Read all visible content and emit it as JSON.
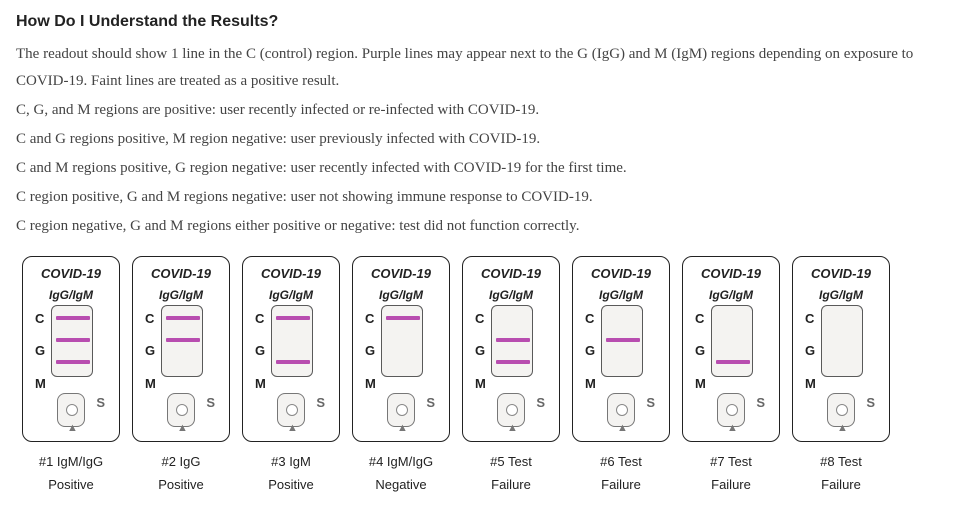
{
  "heading": "How Do I Understand the Results?",
  "p1": "The readout should show 1 line in the C (control) region. Purple lines may appear next to the G (IgG) and M (IgM) regions depending on exposure to COVID-19. Faint lines are treated as a positive result.",
  "p2": "C, G, and M regions are positive: user recently infected or re-infected with COVID-19.",
  "p3": "C and G regions positive, M region negative: user previously infected with COVID-19.",
  "p4": "C and M regions positive, G region negative: user recently infected with COVID-19 for the first time.",
  "p5": "C region positive, G and M regions negative: user not showing immune response to COVID-19.",
  "p6": "C region negative, G and M regions either positive or negative: test did not function correctly.",
  "cassette_title": "COVID-19",
  "cassette_sub": "IgG/IgM",
  "row_labels": {
    "c": "C",
    "g": "G",
    "m": "M",
    "s": "S"
  },
  "colors": {
    "strong": "#b84db0",
    "faint": "#d9b8d6",
    "absent": null,
    "arrow": "#777777"
  },
  "cassettes": [
    {
      "c": "strong",
      "g": "strong",
      "m": "strong",
      "cap1": "#1 IgM/IgG",
      "cap2": "Positive"
    },
    {
      "c": "strong",
      "g": "strong",
      "m": "absent",
      "cap1": "#2 IgG",
      "cap2": "Positive"
    },
    {
      "c": "strong",
      "g": "absent",
      "m": "strong",
      "cap1": "#3 IgM",
      "cap2": "Positive"
    },
    {
      "c": "strong",
      "g": "absent",
      "m": "absent",
      "cap1": "#4 IgM/IgG",
      "cap2": "Negative"
    },
    {
      "c": "absent",
      "g": "strong",
      "m": "strong",
      "cap1": "#5 Test",
      "cap2": "Failure"
    },
    {
      "c": "absent",
      "g": "strong",
      "m": "absent",
      "cap1": "#6 Test",
      "cap2": "Failure"
    },
    {
      "c": "absent",
      "g": "absent",
      "m": "strong",
      "cap1": "#7 Test",
      "cap2": "Failure"
    },
    {
      "c": "absent",
      "g": "absent",
      "m": "absent",
      "cap1": "#8 Test",
      "cap2": "Failure"
    }
  ]
}
